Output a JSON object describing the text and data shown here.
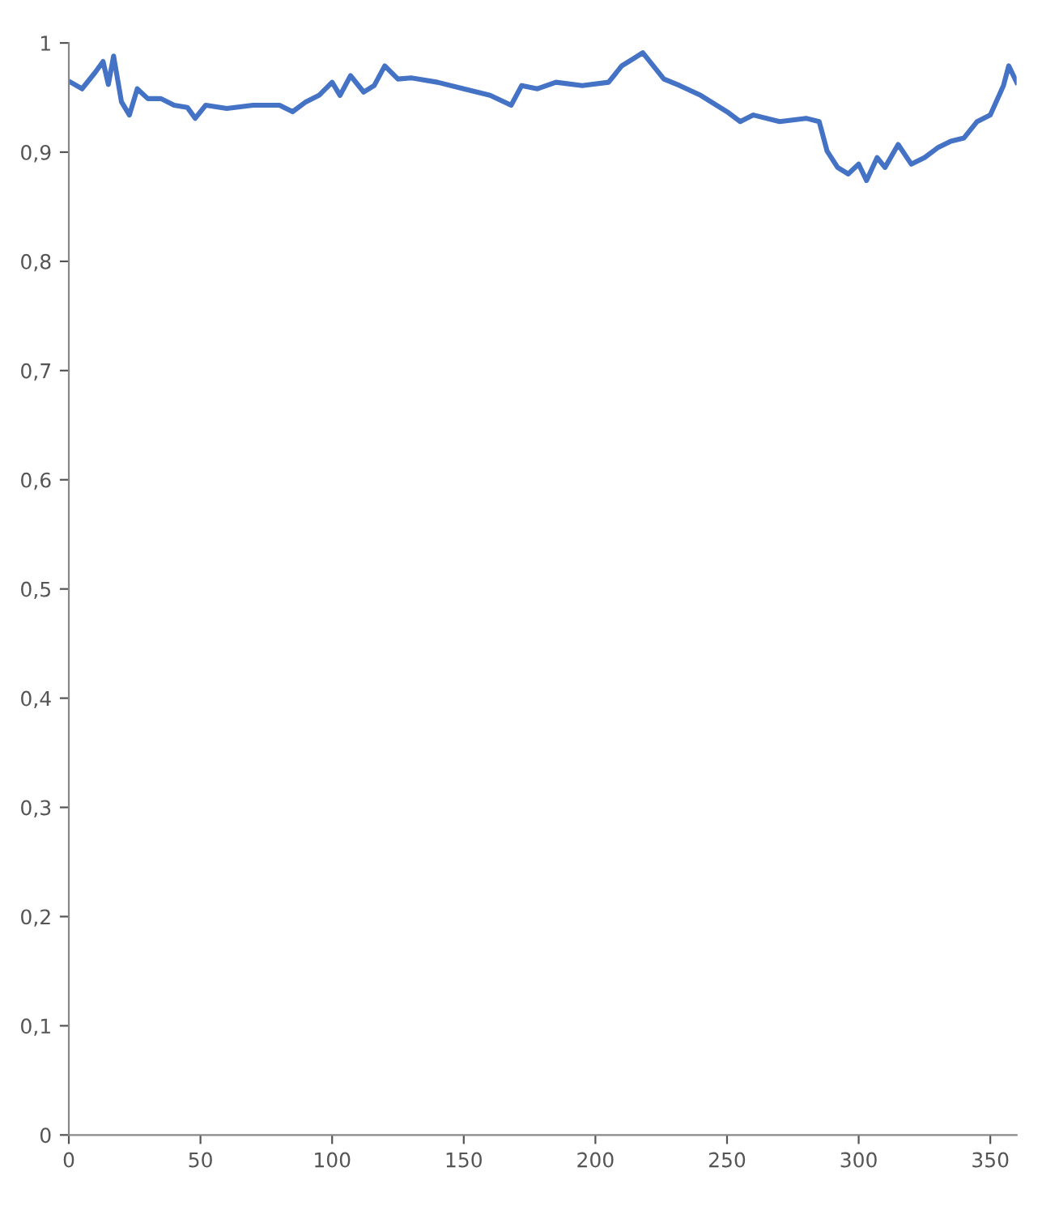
{
  "chart_data": {
    "type": "line",
    "x": [
      0,
      5,
      10,
      13,
      15,
      17,
      20,
      23,
      26,
      30,
      35,
      40,
      45,
      48,
      52,
      60,
      70,
      80,
      85,
      90,
      95,
      100,
      103,
      107,
      112,
      116,
      120,
      125,
      130,
      140,
      150,
      160,
      168,
      172,
      178,
      185,
      195,
      205,
      210,
      214,
      218,
      222,
      226,
      232,
      240,
      250,
      255,
      260,
      270,
      280,
      285,
      288,
      292,
      296,
      300,
      303,
      307,
      310,
      315,
      320,
      325,
      330,
      335,
      340,
      345,
      350,
      355,
      357,
      360
    ],
    "series": [
      {
        "color": "#4472c4",
        "values": [
          0.965,
          0.958,
          0.973,
          0.983,
          0.962,
          0.988,
          0.946,
          0.934,
          0.958,
          0.949,
          0.949,
          0.943,
          0.941,
          0.931,
          0.943,
          0.94,
          0.943,
          0.943,
          0.937,
          0.946,
          0.952,
          0.964,
          0.952,
          0.97,
          0.955,
          0.961,
          0.979,
          0.967,
          0.968,
          0.964,
          0.958,
          0.952,
          0.943,
          0.961,
          0.958,
          0.964,
          0.961,
          0.964,
          0.979,
          0.985,
          0.991,
          0.979,
          0.967,
          0.961,
          0.952,
          0.937,
          0.928,
          0.934,
          0.928,
          0.931,
          0.928,
          0.901,
          0.886,
          0.88,
          0.889,
          0.874,
          0.895,
          0.886,
          0.907,
          0.889,
          0.895,
          0.904,
          0.91,
          0.913,
          0.928,
          0.934,
          0.961,
          0.979,
          0.964
        ]
      }
    ],
    "xlim": [
      0,
      360
    ],
    "xticks": [
      0,
      50,
      100,
      150,
      200,
      250,
      300,
      350
    ],
    "ylim": [
      0,
      1
    ],
    "yticks": [
      {
        "value": 0,
        "label": "0"
      },
      {
        "value": 0.1,
        "label": "0,1"
      },
      {
        "value": 0.2,
        "label": "0,2"
      },
      {
        "value": 0.3,
        "label": "0,3"
      },
      {
        "value": 0.4,
        "label": "0,4"
      },
      {
        "value": 0.5,
        "label": "0,5"
      },
      {
        "value": 0.6,
        "label": "0,6"
      },
      {
        "value": 0.7,
        "label": "0,7"
      },
      {
        "value": 0.8,
        "label": "0,8"
      },
      {
        "value": 0.9,
        "label": "0,9"
      },
      {
        "value": 1,
        "label": "1"
      }
    ],
    "grid": false,
    "legend": false,
    "marker": "none",
    "line_style": "solid"
  }
}
